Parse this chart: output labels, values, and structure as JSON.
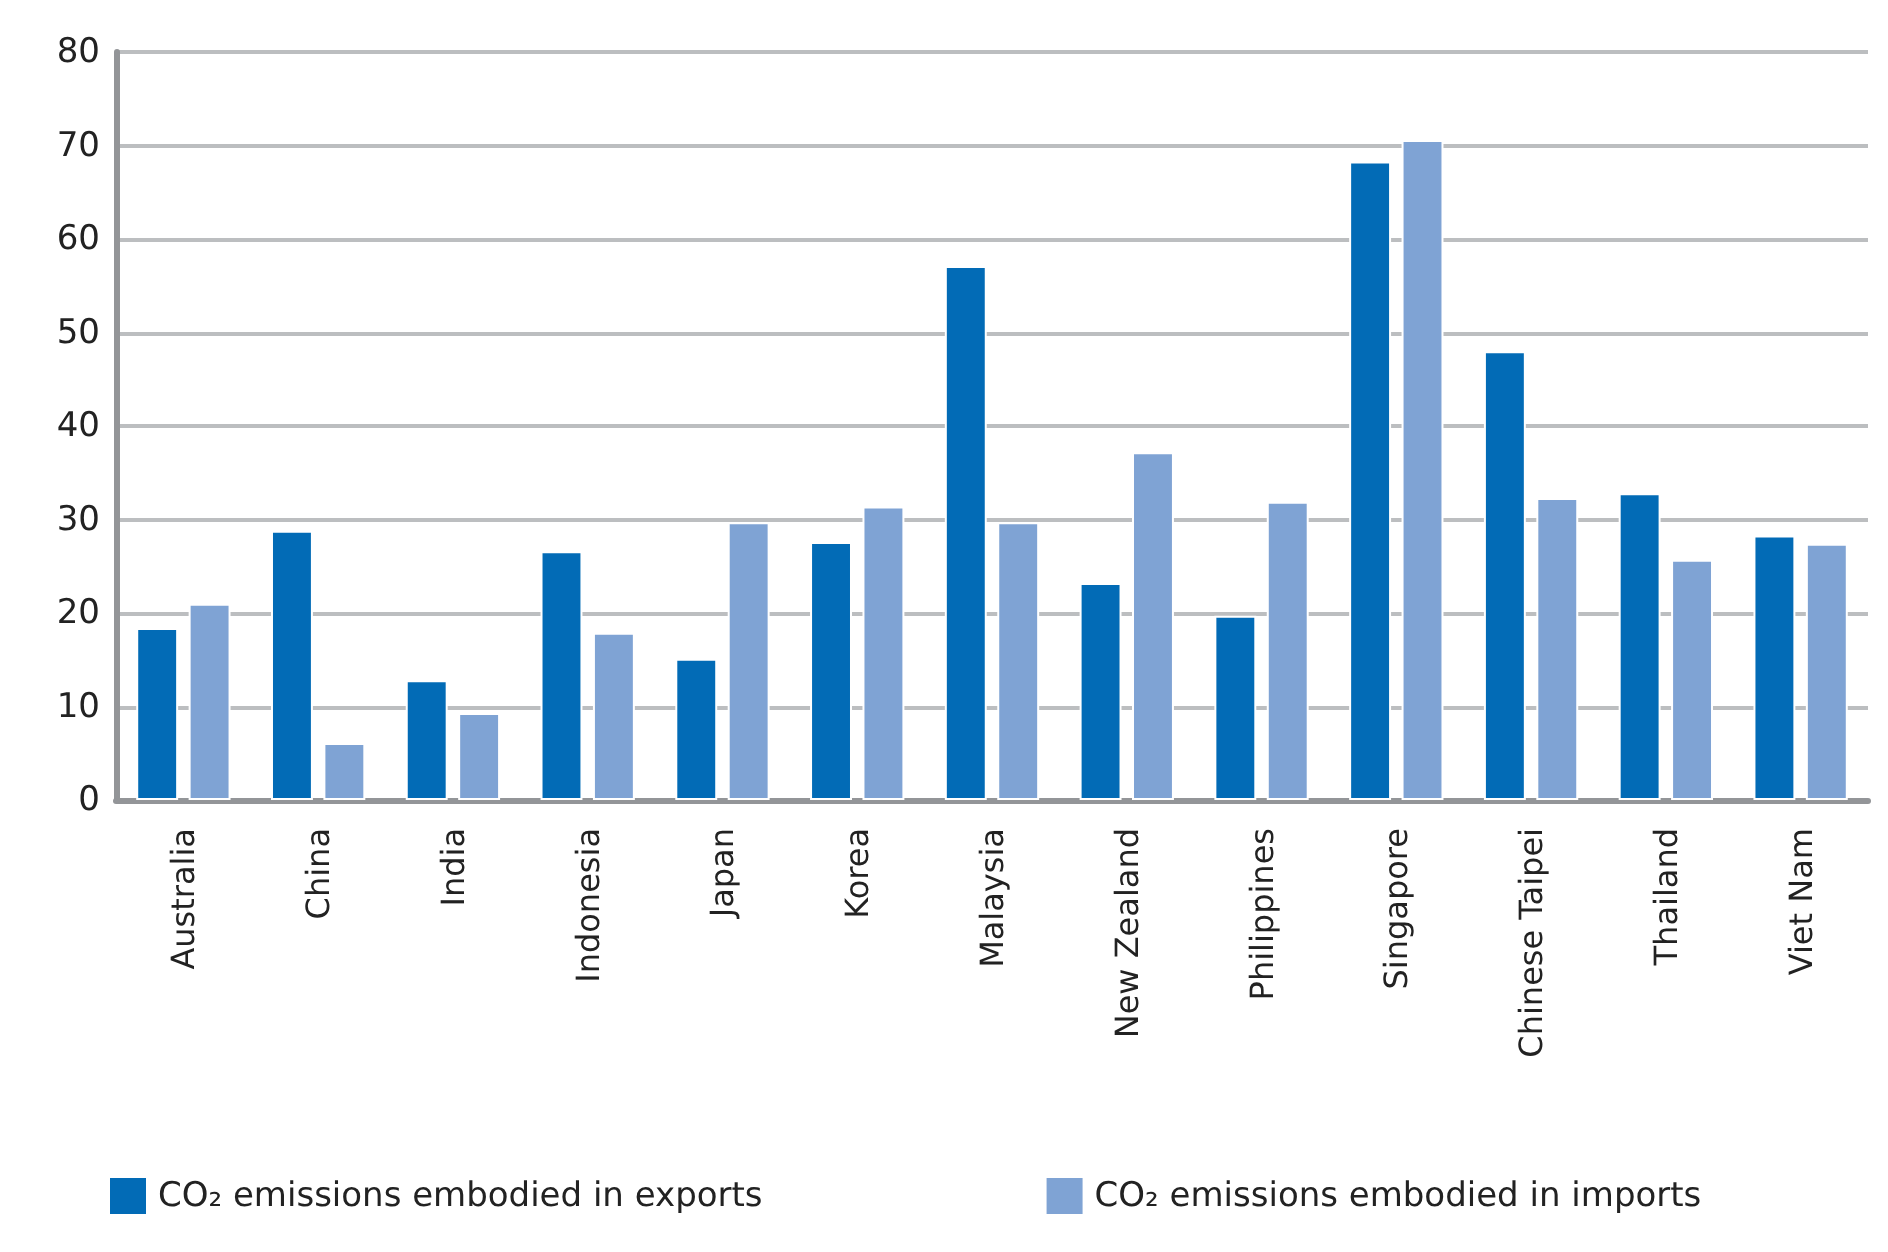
{
  "chart_data": {
    "type": "bar",
    "categories": [
      "Australia",
      "China",
      "India",
      "Indonesia",
      "Japan",
      "Korea",
      "Malaysia",
      "New Zealand",
      "Philippines",
      "Singapore",
      "Chinese Taipei",
      "Thailand",
      "Viet Nam"
    ],
    "series": [
      {
        "name": "CO₂ emissions embodied in exports",
        "color": "#026bb6",
        "values": [
          18.4,
          28.8,
          12.8,
          26.6,
          15.1,
          27.6,
          57.1,
          23.2,
          19.7,
          68.3,
          48.0,
          32.8,
          28.3
        ]
      },
      {
        "name": "CO₂ emissions embodied in imports",
        "color": "#7fa3d4",
        "values": [
          21.0,
          6.1,
          9.3,
          17.9,
          29.7,
          31.4,
          29.7,
          37.2,
          31.9,
          70.6,
          32.3,
          25.7,
          27.4
        ]
      }
    ],
    "ylim": [
      0,
      80
    ],
    "yticks": [
      0,
      10,
      20,
      30,
      40,
      50,
      60,
      70,
      80
    ],
    "grid": "y",
    "legend": "bottom"
  }
}
